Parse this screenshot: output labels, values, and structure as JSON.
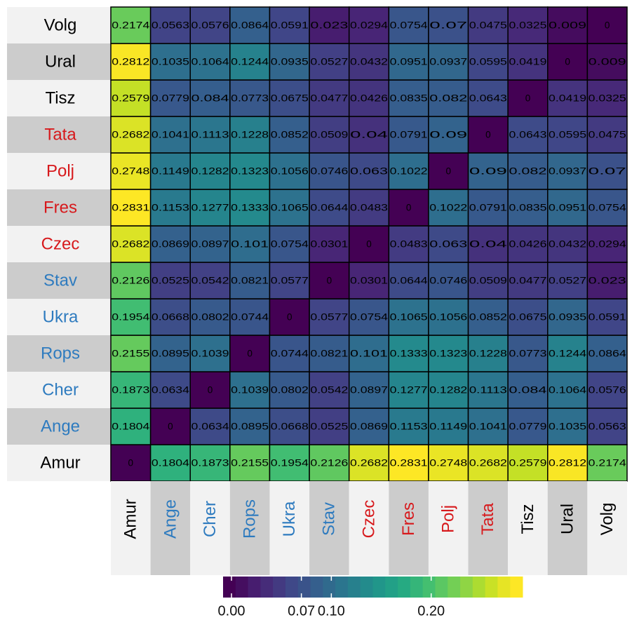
{
  "chart_data": {
    "type": "heatmap",
    "colormap": "viridis",
    "x_categories": [
      "Amur",
      "Ange",
      "Cher",
      "Rops",
      "Ukra",
      "Stav",
      "Czec",
      "Fres",
      "Polj",
      "Tata",
      "Tisz",
      "Ural",
      "Volg"
    ],
    "y_categories": [
      "Amur",
      "Ange",
      "Cher",
      "Rops",
      "Ukra",
      "Stav",
      "Czec",
      "Fres",
      "Polj",
      "Tata",
      "Tisz",
      "Ural",
      "Volg"
    ],
    "label_colors": [
      "#000000",
      "#2e7bbf",
      "#2e7bbf",
      "#2e7bbf",
      "#2e7bbf",
      "#2e7bbf",
      "#d7191c",
      "#d7191c",
      "#d7191c",
      "#d7191c",
      "#000000",
      "#000000",
      "#000000"
    ],
    "values": [
      [
        0,
        0.1804,
        0.1873,
        0.2155,
        0.1954,
        0.2126,
        0.2682,
        0.2831,
        0.2748,
        0.2682,
        0.2579,
        0.2812,
        0.2174
      ],
      [
        0.1804,
        0,
        0.0634,
        0.0895,
        0.0668,
        0.0525,
        0.0869,
        0.1153,
        0.1149,
        0.1041,
        0.0779,
        0.1035,
        0.0563
      ],
      [
        0.1873,
        0.0634,
        0,
        0.1039,
        0.0802,
        0.0542,
        0.0897,
        0.1277,
        0.1282,
        0.1113,
        0.084,
        0.1064,
        0.0576
      ],
      [
        0.2155,
        0.0895,
        0.1039,
        0,
        0.0744,
        0.0821,
        0.101,
        0.1333,
        0.1323,
        0.1228,
        0.0773,
        0.1244,
        0.0864
      ],
      [
        0.1954,
        0.0668,
        0.0802,
        0.0744,
        0,
        0.0577,
        0.0754,
        0.1065,
        0.1056,
        0.0852,
        0.0675,
        0.0935,
        0.0591
      ],
      [
        0.2126,
        0.0525,
        0.0542,
        0.0821,
        0.0577,
        0,
        0.0301,
        0.0644,
        0.0746,
        0.0509,
        0.0477,
        0.0527,
        0.023
      ],
      [
        0.2682,
        0.0869,
        0.0897,
        0.101,
        0.0754,
        0.0301,
        0,
        0.0483,
        0.063,
        0.04,
        0.0426,
        0.0432,
        0.0294
      ],
      [
        0.2831,
        0.1153,
        0.1277,
        0.1333,
        0.1065,
        0.0644,
        0.0483,
        0,
        0.1022,
        0.0791,
        0.0835,
        0.0951,
        0.0754
      ],
      [
        0.2748,
        0.1149,
        0.1282,
        0.1323,
        0.1056,
        0.0746,
        0.063,
        0.1022,
        0,
        0.09,
        0.082,
        0.0937,
        0.07
      ],
      [
        0.2682,
        0.1041,
        0.1113,
        0.1228,
        0.0852,
        0.0509,
        0.04,
        0.0791,
        0.09,
        0,
        0.0643,
        0.0595,
        0.0475
      ],
      [
        0.2579,
        0.0779,
        0.084,
        0.0773,
        0.0675,
        0.0477,
        0.0426,
        0.0835,
        0.082,
        0.0643,
        0,
        0.0419,
        0.0325
      ],
      [
        0.2812,
        0.1035,
        0.1064,
        0.1244,
        0.0935,
        0.0527,
        0.0432,
        0.0951,
        0.0937,
        0.0595,
        0.0419,
        0,
        0.009
      ],
      [
        0.2174,
        0.0563,
        0.0576,
        0.0864,
        0.0591,
        0.023,
        0.0294,
        0.0754,
        0.07,
        0.0475,
        0.0325,
        0.009,
        0
      ]
    ],
    "zlim": [
      0,
      0.2831
    ],
    "zticks": [
      {
        "value": 0,
        "label": "0.00"
      },
      0.07,
      {
        "value": 0.1,
        "label": "0.10"
      },
      {
        "value": 0.2,
        "label": "0.20"
      }
    ]
  }
}
